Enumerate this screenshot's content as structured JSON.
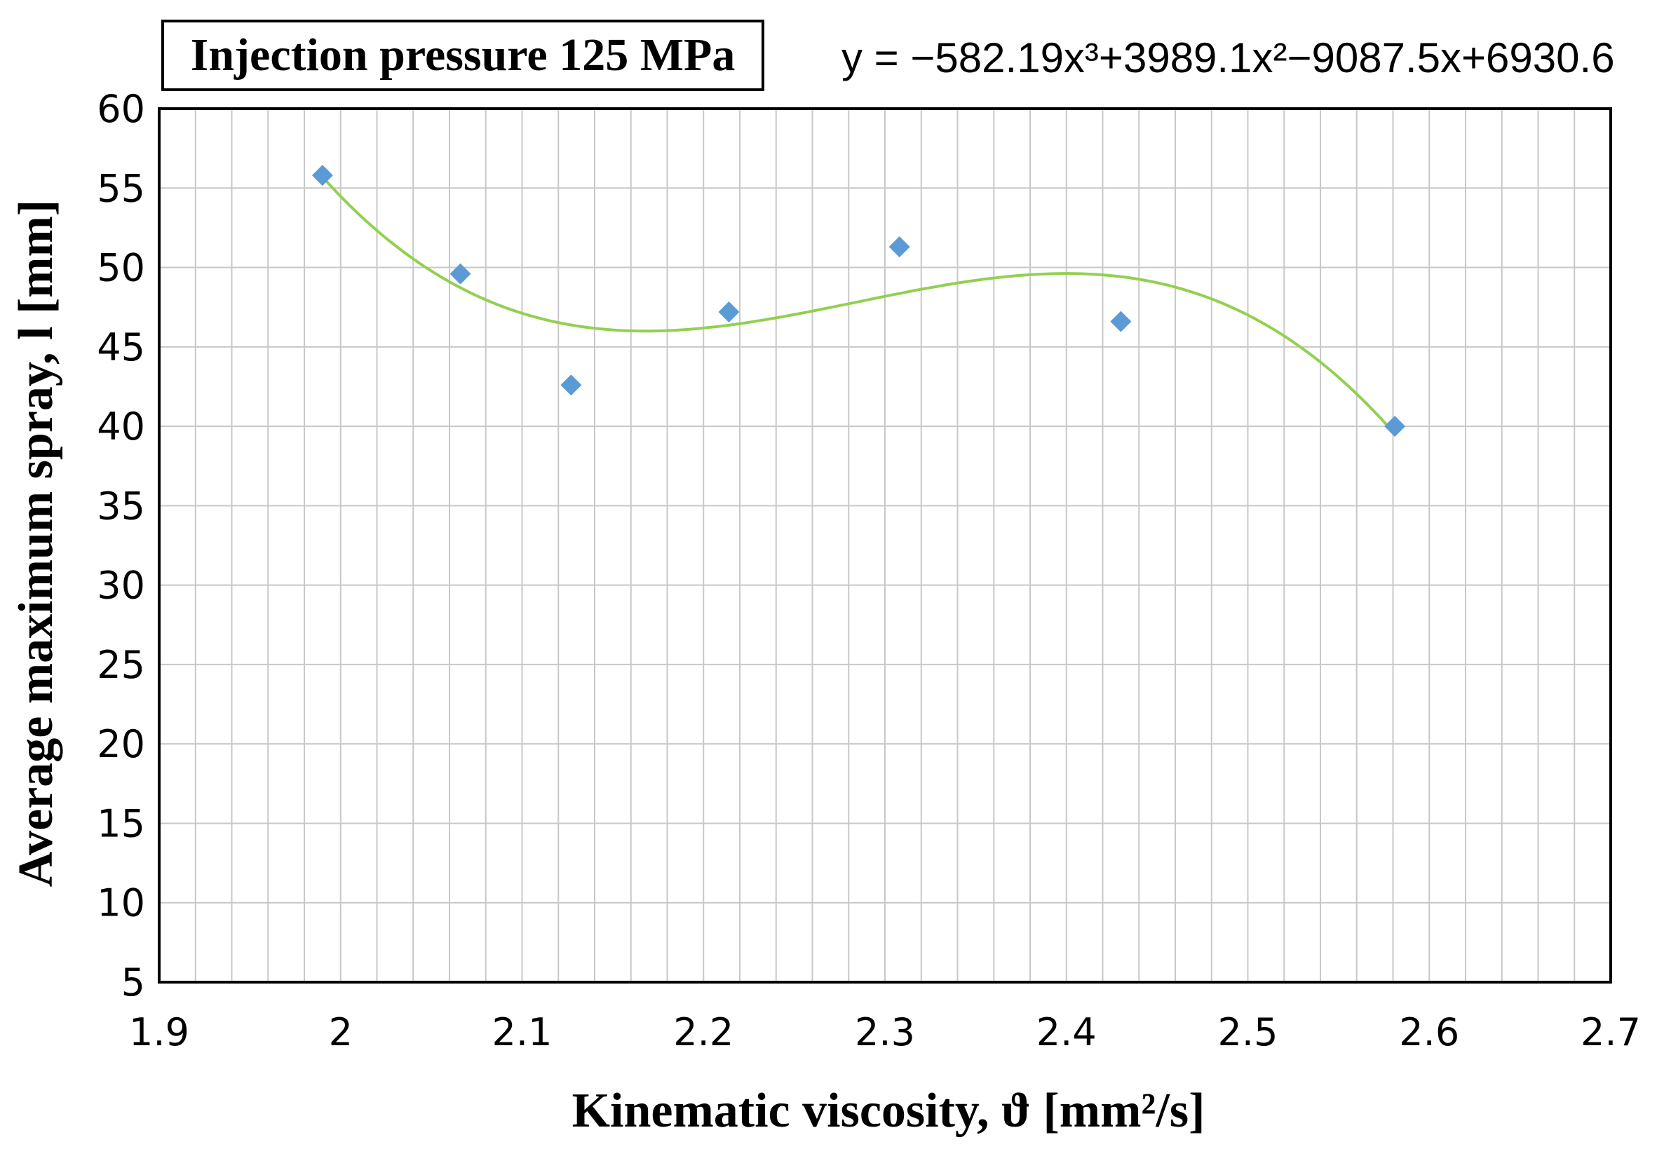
{
  "chart_data": {
    "type": "scatter",
    "title": "Injection pressure 125 MPa",
    "equation": "y = −582.19x³+3989.1x²−9087.5x+6930.6",
    "xlabel": "Kinematic viscosity, ϑ [mm²/s]",
    "ylabel": "Average maximum spray, l [mm]",
    "xlim": [
      1.9,
      2.7
    ],
    "ylim": [
      5,
      60
    ],
    "x_ticks": [
      "1.9",
      "2",
      "2.1",
      "2.2",
      "2.3",
      "2.4",
      "2.5",
      "2.6",
      "2.7"
    ],
    "y_ticks": [
      "60",
      "55",
      "50",
      "45",
      "40",
      "35",
      "30",
      "25",
      "20",
      "15",
      "10",
      "5"
    ],
    "grid": true,
    "series": [
      {
        "points": [
          {
            "x": 1.99,
            "y": 55.8
          },
          {
            "x": 2.066,
            "y": 49.6
          },
          {
            "x": 2.127,
            "y": 42.6
          },
          {
            "x": 2.214,
            "y": 47.2
          },
          {
            "x": 2.308,
            "y": 51.3
          },
          {
            "x": 2.43,
            "y": 46.6
          },
          {
            "x": 2.581,
            "y": 40.0
          }
        ]
      }
    ],
    "trendline": {
      "type": "polynomial-3",
      "x_range": [
        1.99,
        2.581
      ],
      "coefficients": [
        -582.19,
        3989.1,
        -9087.5,
        6930.6
      ]
    },
    "colors": {
      "marker": "#5b9bd5",
      "trendline": "#92d050",
      "grid": "#c8c8c8",
      "frame": "#000000"
    }
  }
}
